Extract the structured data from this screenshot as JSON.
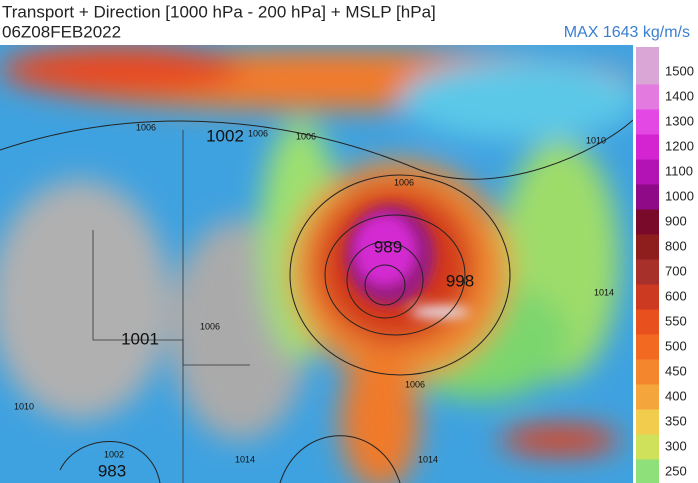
{
  "header": {
    "title": "Transport + Direction [1000 hPa - 200 hPa] + MSLP [hPa]",
    "date": "06Z08FEB2022",
    "max_label": "MAX 1643 kg/m/s"
  },
  "colorbar": {
    "ticks": [
      1500,
      1400,
      1300,
      1200,
      1100,
      1000,
      900,
      800,
      700,
      600,
      550,
      500,
      450,
      400,
      350,
      300,
      250
    ],
    "colors": [
      "#d9a6d6",
      "#e27ae0",
      "#e448e4",
      "#d424d2",
      "#b312b4",
      "#8e0a86",
      "#7a0a2a",
      "#8e1e1e",
      "#a8302a",
      "#cc3a22",
      "#e8501e",
      "#f26a22",
      "#f4872e",
      "#f4a63c",
      "#f2cc4c",
      "#cfe05a",
      "#8ee07a"
    ]
  },
  "map": {
    "labels": [
      "1002",
      "1001",
      "989",
      "998",
      "983",
      "1006",
      "1006",
      "1006",
      "1006",
      "1006",
      "1006",
      "1010",
      "1010",
      "1014",
      "1014",
      "1014",
      "1002"
    ]
  }
}
